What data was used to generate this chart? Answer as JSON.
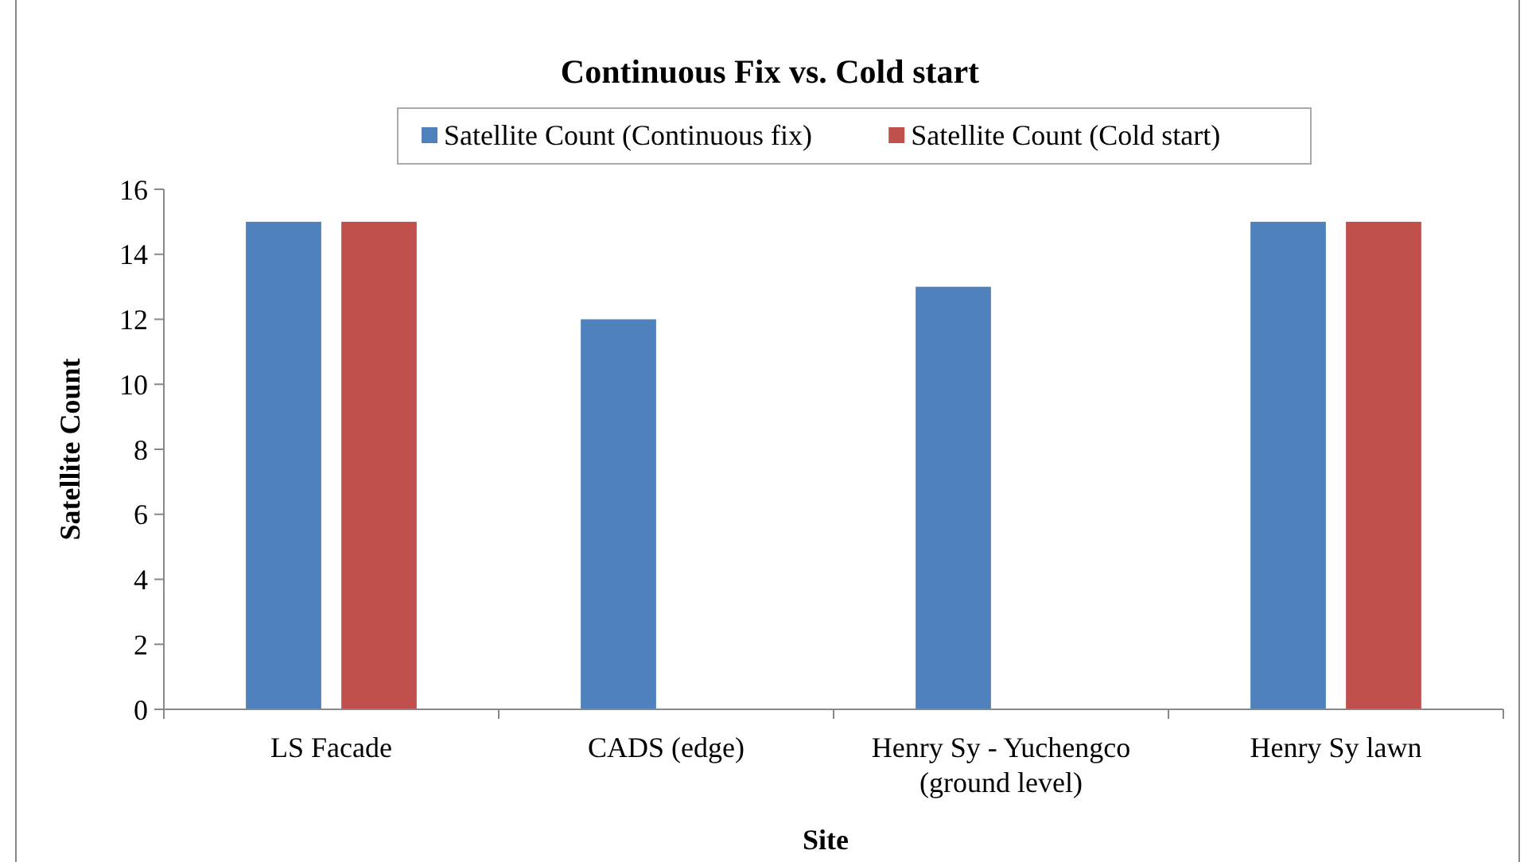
{
  "chart_data": {
    "type": "bar",
    "title": "Continuous Fix vs. Cold start",
    "xlabel": "Site",
    "ylabel": "Satellite Count",
    "categories": [
      "LS Facade",
      "CADS (edge)",
      "Henry Sy - Yuchengco (ground level)",
      "Henry Sy lawn"
    ],
    "series": [
      {
        "name": "Satellite Count (Continuous fix)",
        "color": "#4f81bd",
        "values": [
          15,
          12,
          13,
          15
        ]
      },
      {
        "name": "Satellite Count (Cold start)",
        "color": "#c0504d",
        "values": [
          15,
          null,
          null,
          15
        ]
      }
    ],
    "ylim": [
      0,
      16
    ],
    "yticks": [
      0,
      2,
      4,
      6,
      8,
      10,
      12,
      14,
      16
    ],
    "grid": false,
    "legend": "top"
  }
}
